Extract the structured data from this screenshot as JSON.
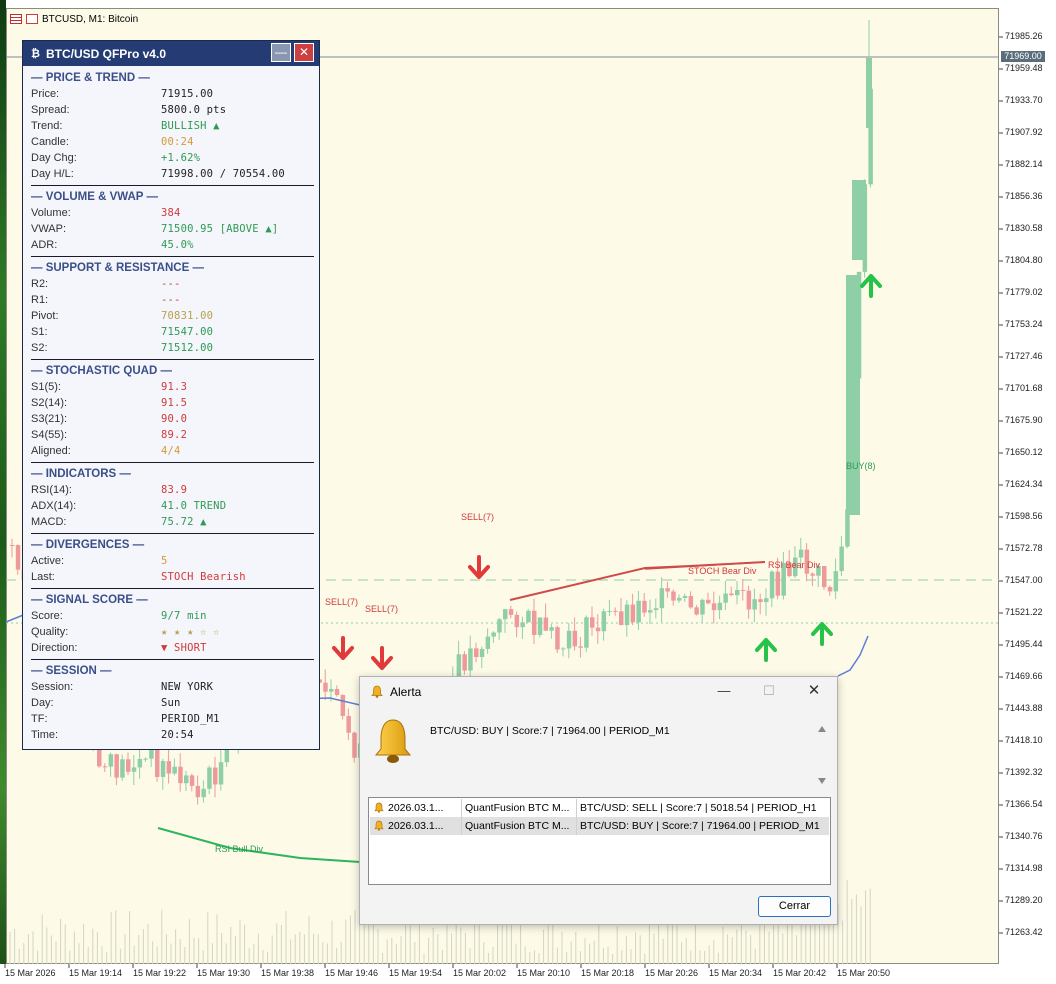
{
  "window": {
    "title": "BTCUSD, M1:  Bitcoin"
  },
  "colors": {
    "bull": "#8fcfa8",
    "bear": "#ee9a9a",
    "panel_header": "#243b74",
    "ma_line": "#5b7fd6",
    "div_line": "#2db45c",
    "buy_arrow": "#27c24a",
    "sell_arrow": "#e03a3a"
  },
  "price_axis": {
    "current_price": "71969.00",
    "labels": [
      "71985.26",
      "71959.48",
      "71933.70",
      "71907.92",
      "71882.14",
      "71856.36",
      "71830.58",
      "71804.80",
      "71779.02",
      "71753.24",
      "71727.46",
      "71701.68",
      "71675.90",
      "71650.12",
      "71624.34",
      "71598.56",
      "71572.78",
      "71547.00",
      "71521.22",
      "71495.44",
      "71469.66",
      "71443.88",
      "71418.10",
      "71392.32",
      "71366.54",
      "71340.76",
      "71314.98",
      "71289.20",
      "71263.42"
    ]
  },
  "time_axis": {
    "labels": [
      "15 Mar 2026",
      "15 Mar 19:14",
      "15 Mar 19:22",
      "15 Mar 19:30",
      "15 Mar 19:38",
      "15 Mar 19:46",
      "15 Mar 19:54",
      "15 Mar 20:02",
      "15 Mar 20:10",
      "15 Mar 20:18",
      "15 Mar 20:26",
      "15 Mar 20:34",
      "15 Mar 20:42",
      "15 Mar 20:50"
    ]
  },
  "chart_labels": {
    "sell1": "SELL(7)",
    "sell2": "SELL(7)",
    "sell3": "SELL(7)",
    "buy": "BUY(8)",
    "stoch_div": "STOCH Bear Div",
    "rsi_bear_div": "RSI Bear Div",
    "rsi_bull_div": "RSI Bull Div"
  },
  "panel": {
    "title": "BTC/USD QFPro v4.0",
    "minimize": "—",
    "close": "✕",
    "sections": [
      {
        "title": "— PRICE & TREND —",
        "rows": [
          {
            "k": "Price:",
            "v": "71915.00",
            "c": "dark"
          },
          {
            "k": "Spread:",
            "v": "5800.0 pts",
            "c": "dark"
          },
          {
            "k": "Trend:",
            "v": "BULLISH ▲",
            "c": "green"
          },
          {
            "k": "Candle:",
            "v": "00:24",
            "c": "orange"
          },
          {
            "k": "Day Chg:",
            "v": "+1.62%",
            "c": "green"
          },
          {
            "k": "Day H/L:",
            "v": "71998.00 / 70554.00",
            "c": "dark"
          }
        ]
      },
      {
        "title": "— VOLUME & VWAP —",
        "rows": [
          {
            "k": "Volume:",
            "v": "384",
            "c": "red"
          },
          {
            "k": "VWAP:",
            "v": "71500.95 [ABOVE ▲]",
            "c": "green"
          },
          {
            "k": "ADR:",
            "v": "45.0%",
            "c": "green"
          }
        ]
      },
      {
        "title": "— SUPPORT & RESISTANCE —",
        "rows": [
          {
            "k": "R2:",
            "v": "---",
            "c": "red"
          },
          {
            "k": "R1:",
            "v": "---",
            "c": "red"
          },
          {
            "k": "Pivot:",
            "v": "70831.00",
            "c": "gold"
          },
          {
            "k": "S1:",
            "v": "71547.00",
            "c": "green"
          },
          {
            "k": "S2:",
            "v": "71512.00",
            "c": "green"
          }
        ]
      },
      {
        "title": "— STOCHASTIC QUAD —",
        "rows": [
          {
            "k": "S1(5):",
            "v": "91.3",
            "c": "red"
          },
          {
            "k": "S2(14):",
            "v": "91.5",
            "c": "red"
          },
          {
            "k": "S3(21):",
            "v": "90.0",
            "c": "red"
          },
          {
            "k": "S4(55):",
            "v": "89.2",
            "c": "red"
          },
          {
            "k": "Aligned:",
            "v": "4/4",
            "c": "orange"
          }
        ]
      },
      {
        "title": "— INDICATORS —",
        "rows": [
          {
            "k": "RSI(14):",
            "v": "83.9",
            "c": "red"
          },
          {
            "k": "ADX(14):",
            "v": "41.0 TREND",
            "c": "green"
          },
          {
            "k": "MACD:",
            "v": "75.72 ▲",
            "c": "green"
          }
        ]
      },
      {
        "title": "— DIVERGENCES —",
        "rows": [
          {
            "k": "Active:",
            "v": "5",
            "c": "orange"
          },
          {
            "k": "Last:",
            "v": "STOCH Bearish",
            "c": "red"
          }
        ]
      },
      {
        "title": "— SIGNAL SCORE —",
        "rows": [
          {
            "k": "Score:",
            "v": "9/7 min",
            "c": "green"
          },
          {
            "k": "Quality:",
            "v": "★ ★ ★ ☆ ☆",
            "c": "gold"
          },
          {
            "k": "Direction:",
            "v": "▼ SHORT",
            "c": "red"
          }
        ]
      },
      {
        "title": "— SESSION —",
        "rows": [
          {
            "k": "Session:",
            "v": "NEW YORK",
            "c": "dark"
          },
          {
            "k": "Day:",
            "v": "Sun",
            "c": "dark"
          },
          {
            "k": "TF:",
            "v": "PERIOD_M1",
            "c": "dark"
          },
          {
            "k": "Time:",
            "v": "20:54",
            "c": "dark"
          }
        ]
      }
    ]
  },
  "alert": {
    "title": "Alerta",
    "message": "BTC/USD: BUY | Score:7 | 71964.00 | PERIOD_M1",
    "rows": [
      {
        "date": "2026.03.1...",
        "expert": "QuantFusion BTC M...",
        "text": "BTC/USD: SELL | Score:7 | 5018.54 | PERIOD_H1"
      },
      {
        "date": "2026.03.1...",
        "expert": "QuantFusion BTC M...",
        "text": "BTC/USD: BUY | Score:7 | 71964.00 | PERIOD_M1"
      }
    ],
    "close_button": "Cerrar"
  }
}
